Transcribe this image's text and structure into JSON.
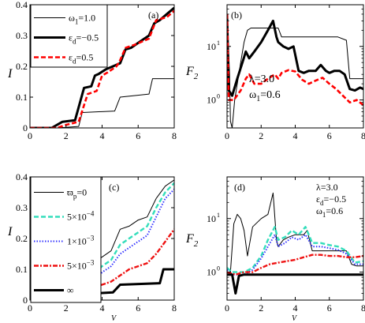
{
  "chart_data": [
    {
      "type": "line",
      "panel_label": "(a)",
      "xlabel": "",
      "ylabel": "I",
      "xlim": [
        0,
        8
      ],
      "ylim": [
        0,
        0.4
      ],
      "x_ticks": [
        "0",
        "2",
        "4",
        "6",
        "8"
      ],
      "y_ticks": [
        "0",
        "0.1",
        "0.2",
        "0.3",
        "0.4"
      ],
      "legend": "top-left",
      "series": [
        {
          "name": "ω1=1.0",
          "legend_label": "ω",
          "legend_sub": "1",
          "legend_rest": "=1.0",
          "style": "thin-black",
          "x": [
            0,
            1.5,
            2.7,
            2.9,
            4.7,
            5.0,
            6.6,
            6.8,
            8.0
          ],
          "y": [
            0,
            0,
            0.005,
            0.05,
            0.055,
            0.1,
            0.11,
            0.16,
            0.16
          ]
        },
        {
          "name": "εd=-0.5",
          "legend_label": "ε",
          "legend_sub": "d",
          "legend_rest": "=−0.5",
          "style": "thick-black",
          "x": [
            0,
            1.2,
            1.8,
            2.5,
            3.0,
            3.4,
            3.6,
            3.8,
            4.2,
            4.6,
            5.0,
            5.3,
            5.6,
            6.1,
            6.6,
            6.9,
            7.2,
            7.6,
            8.0
          ],
          "y": [
            0,
            0,
            0.02,
            0.025,
            0.13,
            0.135,
            0.17,
            0.175,
            0.19,
            0.2,
            0.21,
            0.255,
            0.26,
            0.28,
            0.3,
            0.34,
            0.35,
            0.37,
            0.39
          ]
        },
        {
          "name": "εd=0.5",
          "legend_label": "ε",
          "legend_sub": "d",
          "legend_rest": "=0.5",
          "style": "dashed-red",
          "x": [
            0,
            1.5,
            2.0,
            2.7,
            3.2,
            3.7,
            4.0,
            4.3,
            4.8,
            5.0,
            5.3,
            5.8,
            6.2,
            6.6,
            7.0,
            7.6,
            8.0
          ],
          "y": [
            0,
            0,
            0.01,
            0.02,
            0.11,
            0.12,
            0.17,
            0.18,
            0.2,
            0.22,
            0.26,
            0.27,
            0.28,
            0.29,
            0.35,
            0.36,
            0.38
          ]
        }
      ]
    },
    {
      "type": "line",
      "panel_label": "(b)",
      "xlabel": "",
      "ylabel": "F",
      "ylabel_sub": "2",
      "xlim": [
        0,
        8
      ],
      "ylim": [
        0.3,
        60
      ],
      "yscale": "log",
      "x_ticks": [
        "0",
        "2",
        "4",
        "6",
        "8"
      ],
      "annotation": {
        "lambda": "λ=3.0",
        "omega": "ω",
        "omega_sub": "1",
        "omega_rest": "=0.6"
      },
      "series": [
        {
          "name": "ω1=1.0",
          "style": "thin-black",
          "x": [
            0,
            0.15,
            0.2,
            0.3,
            0.45,
            0.6,
            0.8,
            1.0,
            1.2,
            1.4,
            1.6,
            2.0,
            2.4,
            2.8,
            3.0,
            3.2,
            3.5,
            4.0,
            4.2,
            4.5,
            5.0,
            6.0,
            6.5,
            7.0,
            7.2,
            7.5,
            8.0
          ],
          "y": [
            40,
            3,
            0.4,
            0.3,
            1.0,
            2,
            5,
            12,
            20,
            22,
            22,
            22,
            22,
            22,
            22,
            15,
            15,
            15,
            15,
            15,
            15,
            15,
            15,
            13,
            2.5,
            2.5,
            2.5
          ]
        },
        {
          "name": "εd=-0.5",
          "style": "thick-black",
          "x": [
            0,
            0.1,
            0.3,
            0.6,
            0.9,
            1.1,
            1.3,
            1.6,
            2.0,
            2.4,
            2.7,
            2.9,
            3.0,
            3.3,
            3.6,
            3.9,
            4.2,
            4.5,
            4.8,
            5.2,
            5.5,
            5.8,
            6.0,
            6.3,
            6.6,
            6.9,
            7.2,
            7.5,
            7.8,
            8.0
          ],
          "y": [
            40,
            1.5,
            1.2,
            2.5,
            5,
            8,
            6,
            8,
            12,
            20,
            30,
            15,
            12,
            10,
            9,
            10,
            3.5,
            3.2,
            3.5,
            3.5,
            4.5,
            3.5,
            3.2,
            3.5,
            3.5,
            3.0,
            1.6,
            1.5,
            1.7,
            1.6
          ]
        },
        {
          "name": "εd=0.5",
          "style": "dashed-red",
          "x": [
            0,
            0.1,
            0.4,
            0.8,
            1.1,
            1.3,
            1.6,
            2.0,
            2.4,
            2.8,
            3.0,
            3.2,
            3.6,
            4.0,
            4.4,
            4.8,
            5.2,
            5.6,
            6.0,
            6.4,
            6.8,
            7.2,
            7.6,
            8.0
          ],
          "y": [
            40,
            1.0,
            1.0,
            1.5,
            2.5,
            3,
            2,
            2,
            2.5,
            3,
            2.5,
            3.2,
            3.6,
            3.4,
            2.4,
            2.0,
            2.3,
            2.6,
            2.0,
            1.6,
            1.2,
            0.9,
            1.0,
            0.8
          ]
        }
      ]
    },
    {
      "type": "line",
      "panel_label": "(c)",
      "xlabel": "V",
      "ylabel": "I",
      "xlim": [
        0,
        8
      ],
      "ylim": [
        0,
        0.4
      ],
      "x_ticks": [
        "0",
        "2",
        "4",
        "6",
        "8"
      ],
      "y_ticks": [
        "0",
        "0.1",
        "0.2",
        "0.3",
        "0.4"
      ],
      "legend": "top-left",
      "series": [
        {
          "name": "ϖp=0",
          "legend_label": "ϖ",
          "legend_sub": "p",
          "legend_rest": "=0",
          "style": "thin-black",
          "x": [
            0,
            1.5,
            2.6,
            3.0,
            3.5,
            4.0,
            4.5,
            5.0,
            5.5,
            6.0,
            6.5,
            7.0,
            7.5,
            8.0
          ],
          "y": [
            0,
            0,
            0.01,
            0.1,
            0.12,
            0.14,
            0.16,
            0.23,
            0.24,
            0.26,
            0.27,
            0.33,
            0.37,
            0.39
          ]
        },
        {
          "name": "5×10-4",
          "legend_label": "5×10",
          "legend_sup": "−4",
          "style": "dash-cyan",
          "x": [
            0,
            1.5,
            2.8,
            3.2,
            3.6,
            4.0,
            4.5,
            5.0,
            5.5,
            6.0,
            6.5,
            7.0,
            7.5,
            8.0
          ],
          "y": [
            0,
            0,
            0.01,
            0.06,
            0.09,
            0.11,
            0.13,
            0.18,
            0.2,
            0.22,
            0.24,
            0.3,
            0.35,
            0.38
          ]
        },
        {
          "name": "1×10-3",
          "legend_label": "1×10",
          "legend_sup": "−3",
          "style": "dotted-blue",
          "x": [
            0,
            1.5,
            2.8,
            3.2,
            3.6,
            4.0,
            4.5,
            5.0,
            5.5,
            6.0,
            6.5,
            7.0,
            7.5,
            8.0
          ],
          "y": [
            0,
            0,
            0.01,
            0.05,
            0.07,
            0.09,
            0.11,
            0.15,
            0.17,
            0.19,
            0.21,
            0.27,
            0.33,
            0.36
          ]
        },
        {
          "name": "5×10-3",
          "legend_label": "5×10",
          "legend_sup": "−3",
          "style": "dashdot-red",
          "x": [
            0,
            1.5,
            3.0,
            3.5,
            4.0,
            4.5,
            5.0,
            5.5,
            6.0,
            6.5,
            7.0,
            7.5,
            8.0
          ],
          "y": [
            0,
            0,
            0.01,
            0.04,
            0.05,
            0.06,
            0.08,
            0.1,
            0.11,
            0.12,
            0.15,
            0.19,
            0.23
          ]
        },
        {
          "name": "∞",
          "legend_label": "∞",
          "style": "thick-black",
          "x": [
            0,
            1.5,
            2.8,
            3.0,
            4.6,
            5.0,
            7.2,
            7.4,
            8.0
          ],
          "y": [
            0,
            0,
            0.01,
            0.02,
            0.025,
            0.05,
            0.055,
            0.1,
            0.1
          ]
        }
      ]
    },
    {
      "type": "line",
      "panel_label": "(d)",
      "xlabel": "V",
      "ylabel": "F",
      "ylabel_sub": "2",
      "xlim": [
        0,
        8
      ],
      "ylim": [
        0.3,
        60
      ],
      "yscale": "log",
      "x_ticks": [
        "0",
        "2",
        "4",
        "6",
        "8"
      ],
      "annotation": {
        "lambda": "λ=3.0",
        "eps": "ε",
        "eps_sub": "d",
        "eps_rest": "=−0.5",
        "omega": "ω",
        "omega_sub": "1",
        "omega_rest": "=0.6"
      },
      "series": [
        {
          "name": "ϖp=0",
          "style": "thin-black",
          "x": [
            0,
            0.2,
            0.4,
            0.6,
            0.8,
            1.0,
            1.2,
            1.5,
            2.0,
            2.4,
            2.7,
            2.9,
            3.0,
            3.3,
            3.6,
            4.0,
            4.5,
            4.7,
            5.0,
            5.5,
            6.0,
            6.5,
            7.0,
            7.3,
            7.6,
            8.0
          ],
          "y": [
            1.0,
            1.0,
            8,
            12,
            10,
            6,
            2.0,
            7,
            10,
            12,
            30,
            4,
            3,
            4,
            4.5,
            5,
            5,
            6,
            2.5,
            2.5,
            2.5,
            2.5,
            2.5,
            1.4,
            1.3,
            1.3
          ]
        },
        {
          "name": "5×10-4",
          "style": "dash-cyan",
          "x": [
            0,
            0.3,
            0.6,
            1.0,
            1.5,
            2.0,
            2.4,
            2.8,
            3.0,
            3.4,
            3.8,
            4.2,
            4.6,
            5.0,
            5.5,
            6.0,
            6.5,
            7.0,
            7.5,
            8.0
          ],
          "y": [
            1.2,
            1.0,
            1.0,
            1.0,
            1.2,
            2,
            4,
            7,
            4,
            4.5,
            6,
            5,
            7,
            3.5,
            3.5,
            3.2,
            3,
            2.5,
            1.5,
            1.6
          ]
        },
        {
          "name": "1×10-3",
          "style": "dotted-blue",
          "x": [
            0,
            0.3,
            0.6,
            1.0,
            1.5,
            2.0,
            2.4,
            2.8,
            3.0,
            3.4,
            3.8,
            4.2,
            4.6,
            5.0,
            5.5,
            6.0,
            6.5,
            7.0,
            7.5,
            8.0
          ],
          "y": [
            1.1,
            0.9,
            0.9,
            0.9,
            1.1,
            1.8,
            3,
            5,
            3,
            3.5,
            4.5,
            4,
            5,
            3,
            3,
            2.8,
            2.6,
            2.2,
            1.4,
            1.4
          ]
        },
        {
          "name": "5×10-3",
          "style": "dashdot-red",
          "x": [
            0,
            0.5,
            1.0,
            1.5,
            2.0,
            2.5,
            3.0,
            3.5,
            4.0,
            4.5,
            5.0,
            5.5,
            6.0,
            6.5,
            7.0,
            7.5,
            8.0
          ],
          "y": [
            1.0,
            0.9,
            1.0,
            1.0,
            1.2,
            1.4,
            1.5,
            1.6,
            1.7,
            1.9,
            2.1,
            2.1,
            2.0,
            2.0,
            1.9,
            1.9,
            2.0
          ]
        },
        {
          "name": "∞",
          "style": "thick-black",
          "x": [
            0,
            0.3,
            0.5,
            0.7,
            1.0,
            2.0,
            3.0,
            4.0,
            5.0,
            6.0,
            7.0,
            8.0
          ],
          "y": [
            0.9,
            0.9,
            0.4,
            0.85,
            0.9,
            0.9,
            0.9,
            0.9,
            0.9,
            0.9,
            0.9,
            0.9
          ]
        }
      ]
    }
  ]
}
